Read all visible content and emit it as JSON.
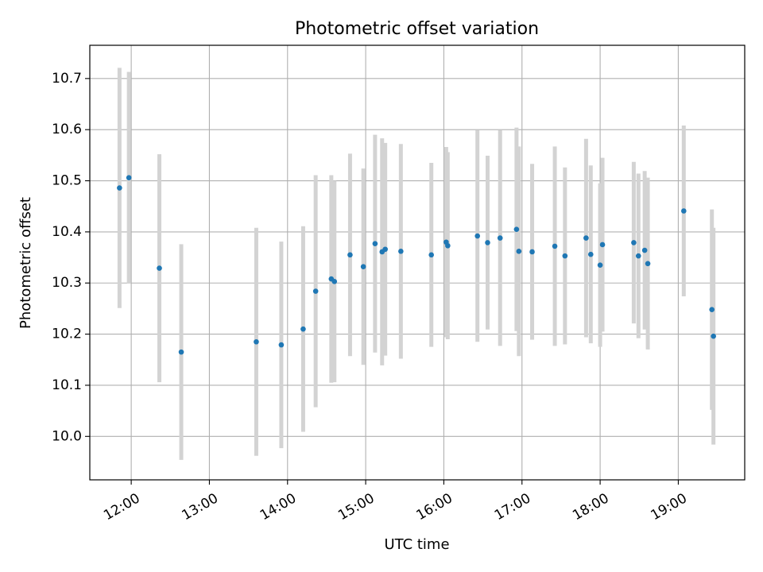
{
  "chart_data": {
    "type": "scatter",
    "title": "Photometric offset variation",
    "xlabel": "UTC time",
    "ylabel": "Photometric offset",
    "x_unit": "hour of day (UTC)",
    "xlim": [
      11.47,
      19.85
    ],
    "ylim": [
      9.915,
      10.765
    ],
    "x_ticks": [
      {
        "value": 12,
        "label": "12:00"
      },
      {
        "value": 13,
        "label": "13:00"
      },
      {
        "value": 14,
        "label": "14:00"
      },
      {
        "value": 15,
        "label": "15:00"
      },
      {
        "value": 16,
        "label": "16:00"
      },
      {
        "value": 17,
        "label": "17:00"
      },
      {
        "value": 18,
        "label": "18:00"
      },
      {
        "value": 19,
        "label": "19:00"
      }
    ],
    "y_ticks": [
      {
        "value": 10.0,
        "label": "10.0"
      },
      {
        "value": 10.1,
        "label": "10.1"
      },
      {
        "value": 10.2,
        "label": "10.2"
      },
      {
        "value": 10.3,
        "label": "10.3"
      },
      {
        "value": 10.4,
        "label": "10.4"
      },
      {
        "value": 10.5,
        "label": "10.5"
      },
      {
        "value": 10.6,
        "label": "10.6"
      },
      {
        "value": 10.7,
        "label": "10.7"
      }
    ],
    "grid": true,
    "point_color": "#1f77b4",
    "errorbar_color": "#d3d3d3",
    "points": [
      {
        "x": 11.85,
        "y": 10.486,
        "err": 0.235
      },
      {
        "x": 11.97,
        "y": 10.506,
        "err": 0.207
      },
      {
        "x": 12.36,
        "y": 10.329,
        "err": 0.223
      },
      {
        "x": 12.64,
        "y": 10.165,
        "err": 0.211
      },
      {
        "x": 13.6,
        "y": 10.185,
        "err": 0.223
      },
      {
        "x": 13.92,
        "y": 10.179,
        "err": 0.202
      },
      {
        "x": 14.2,
        "y": 10.21,
        "err": 0.201
      },
      {
        "x": 14.36,
        "y": 10.284,
        "err": 0.227
      },
      {
        "x": 14.56,
        "y": 10.308,
        "err": 0.203
      },
      {
        "x": 14.6,
        "y": 10.303,
        "err": 0.197
      },
      {
        "x": 14.8,
        "y": 10.355,
        "err": 0.198
      },
      {
        "x": 14.97,
        "y": 10.332,
        "err": 0.192
      },
      {
        "x": 15.12,
        "y": 10.377,
        "err": 0.213
      },
      {
        "x": 15.21,
        "y": 10.361,
        "err": 0.222
      },
      {
        "x": 15.25,
        "y": 10.366,
        "err": 0.208
      },
      {
        "x": 15.45,
        "y": 10.362,
        "err": 0.21
      },
      {
        "x": 15.84,
        "y": 10.355,
        "err": 0.18
      },
      {
        "x": 16.03,
        "y": 10.38,
        "err": 0.186
      },
      {
        "x": 16.05,
        "y": 10.373,
        "err": 0.183
      },
      {
        "x": 16.43,
        "y": 10.392,
        "err": 0.207
      },
      {
        "x": 16.56,
        "y": 10.379,
        "err": 0.17
      },
      {
        "x": 16.72,
        "y": 10.388,
        "err": 0.211
      },
      {
        "x": 16.93,
        "y": 10.405,
        "err": 0.199
      },
      {
        "x": 16.96,
        "y": 10.362,
        "err": 0.205
      },
      {
        "x": 17.13,
        "y": 10.361,
        "err": 0.172
      },
      {
        "x": 17.42,
        "y": 10.372,
        "err": 0.195
      },
      {
        "x": 17.55,
        "y": 10.353,
        "err": 0.173
      },
      {
        "x": 17.82,
        "y": 10.388,
        "err": 0.194
      },
      {
        "x": 17.88,
        "y": 10.356,
        "err": 0.174
      },
      {
        "x": 18.0,
        "y": 10.335,
        "err": 0.16
      },
      {
        "x": 18.03,
        "y": 10.375,
        "err": 0.17
      },
      {
        "x": 18.43,
        "y": 10.379,
        "err": 0.158
      },
      {
        "x": 18.49,
        "y": 10.353,
        "err": 0.161
      },
      {
        "x": 18.57,
        "y": 10.364,
        "err": 0.155
      },
      {
        "x": 18.61,
        "y": 10.338,
        "err": 0.168
      },
      {
        "x": 19.07,
        "y": 10.441,
        "err": 0.167
      },
      {
        "x": 19.43,
        "y": 10.248,
        "err": 0.196
      },
      {
        "x": 19.45,
        "y": 10.196,
        "err": 0.212
      }
    ]
  }
}
